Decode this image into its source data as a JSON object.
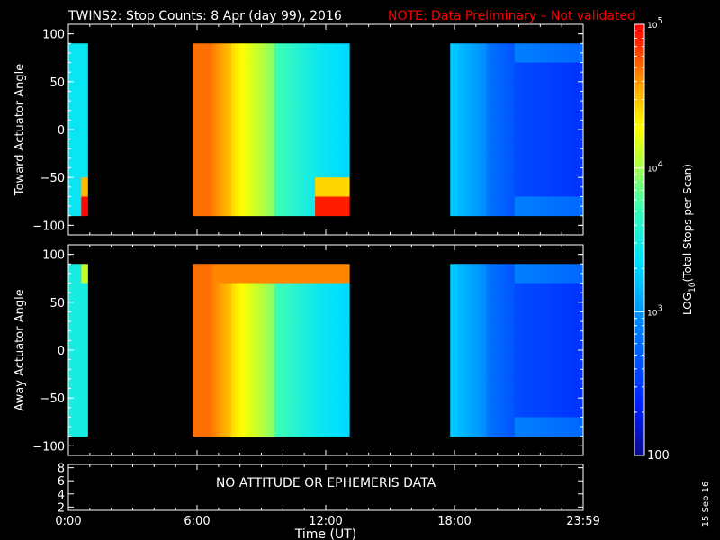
{
  "header": {
    "title": "TWINS2: Stop Counts:  8 Apr (day  99), 2016",
    "note": "NOTE: Data Preliminary – Not validated"
  },
  "footer": {
    "xlabel": "Time (UT)",
    "date_stamp": "15 Sep 16"
  },
  "colors": {
    "background": "#000000",
    "axes": "#ffffff",
    "note": "#ff0000"
  },
  "chart_data": [
    {
      "type": "heatmap",
      "ylabel": "Toward Actuator Angle",
      "xlim_hours": [
        0,
        24
      ],
      "ylim": [
        -110,
        110
      ],
      "data_ylim": [
        -90,
        90
      ],
      "xticks": [
        "0:00",
        "6:00",
        "12:00",
        "18:00",
        "23:59"
      ],
      "xtick_hours": [
        0,
        6,
        12,
        18,
        24
      ],
      "yticks": [
        -100,
        -50,
        0,
        50,
        100
      ],
      "data_intervals_hours": [
        [
          0,
          0.9
        ],
        [
          5.8,
          13.1
        ],
        [
          17.8,
          24
        ]
      ],
      "colormap": "rainbow (blue low to red high)"
    },
    {
      "type": "heatmap",
      "ylabel": "Away Actuator Angle",
      "xlim_hours": [
        0,
        24
      ],
      "ylim": [
        -110,
        110
      ],
      "data_ylim": [
        -90,
        90
      ],
      "xticks": [
        "0:00",
        "6:00",
        "12:00",
        "18:00",
        "23:59"
      ],
      "xtick_hours": [
        0,
        6,
        12,
        18,
        24
      ],
      "yticks": [
        -100,
        -50,
        0,
        50,
        100
      ],
      "data_intervals_hours": [
        [
          0,
          0.9
        ],
        [
          5.8,
          13.1
        ],
        [
          17.8,
          24
        ]
      ],
      "colormap": "rainbow (blue low to red high)"
    },
    {
      "type": "line",
      "yticks": [
        2,
        4,
        6,
        8
      ],
      "ylim": [
        1.5,
        8.5
      ],
      "message": "NO ATTITUDE OR EPHEMERIS DATA"
    },
    {
      "type": "colorbar",
      "label_prefix": "LOG",
      "label_sub": "10",
      "label_suffix": "(Total Stops per Scan)",
      "scale": "log",
      "range": [
        100,
        100000
      ],
      "ticks": [
        {
          "value": 100,
          "base": "100",
          "exp": ""
        },
        {
          "value": 1000,
          "base": "10",
          "exp": "3"
        },
        {
          "value": 10000,
          "base": "10",
          "exp": "4"
        },
        {
          "value": 100000,
          "base": "10",
          "exp": "5"
        }
      ]
    }
  ]
}
